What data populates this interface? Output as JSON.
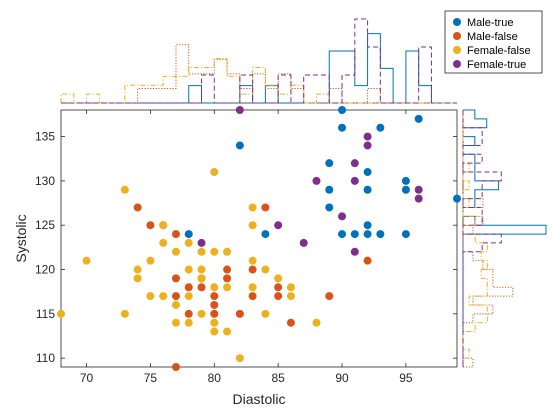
{
  "chart_data": {
    "type": "scatter",
    "title": "",
    "xlabel": "Diastolic",
    "ylabel": "Systolic",
    "xlim": [
      68,
      99
    ],
    "ylim": [
      109,
      138
    ],
    "xticks": [
      70,
      75,
      80,
      85,
      90,
      95
    ],
    "yticks": [
      110,
      115,
      120,
      125,
      130,
      135
    ],
    "grid": false,
    "legend_position": "top-right",
    "series": [
      {
        "name": "Male-true",
        "color": "#0072BD",
        "hist_style": "solid",
        "points": [
          [
            78,
            124
          ],
          [
            82,
            134
          ],
          [
            84,
            124
          ],
          [
            89,
            132
          ],
          [
            89,
            129
          ],
          [
            89,
            127
          ],
          [
            90,
            138
          ],
          [
            90,
            136
          ],
          [
            90,
            124
          ],
          [
            91,
            124
          ],
          [
            92,
            131
          ],
          [
            92,
            129
          ],
          [
            92,
            125
          ],
          [
            92,
            124
          ],
          [
            93,
            136
          ],
          [
            93,
            124
          ],
          [
            95,
            130
          ],
          [
            95,
            129
          ],
          [
            95,
            124
          ],
          [
            96,
            137
          ],
          [
            99,
            128
          ]
        ]
      },
      {
        "name": "Male-false",
        "color": "#D95319",
        "hist_style": "dotted",
        "points": [
          [
            74,
            127
          ],
          [
            75,
            125
          ],
          [
            76,
            125
          ],
          [
            77,
            124
          ],
          [
            77,
            119
          ],
          [
            77,
            117
          ],
          [
            77,
            109
          ],
          [
            78,
            118
          ],
          [
            78,
            115
          ],
          [
            79,
            119
          ],
          [
            79,
            118
          ],
          [
            80,
            117
          ],
          [
            80,
            116
          ],
          [
            80,
            115
          ],
          [
            81,
            120
          ],
          [
            81,
            119
          ],
          [
            82,
            115
          ],
          [
            83,
            120
          ],
          [
            83,
            117
          ],
          [
            84,
            127
          ],
          [
            85,
            118
          ],
          [
            85,
            117
          ],
          [
            86,
            114
          ],
          [
            89,
            117
          ],
          [
            92,
            121
          ]
        ]
      },
      {
        "name": "Female-false",
        "color": "#EDB120",
        "hist_style": "dashdot",
        "points": [
          [
            68,
            115
          ],
          [
            70,
            121
          ],
          [
            73,
            129
          ],
          [
            73,
            115
          ],
          [
            74,
            120
          ],
          [
            74,
            119
          ],
          [
            75,
            121
          ],
          [
            75,
            117
          ],
          [
            76,
            125
          ],
          [
            76,
            123
          ],
          [
            76,
            117
          ],
          [
            77,
            122
          ],
          [
            77,
            116
          ],
          [
            77,
            114
          ],
          [
            78,
            123
          ],
          [
            78,
            120
          ],
          [
            78,
            117
          ],
          [
            78,
            114
          ],
          [
            79,
            122
          ],
          [
            79,
            120
          ],
          [
            79,
            119
          ],
          [
            79,
            115
          ],
          [
            80,
            131
          ],
          [
            80,
            122
          ],
          [
            80,
            118
          ],
          [
            80,
            114
          ],
          [
            80,
            113
          ],
          [
            81,
            122
          ],
          [
            81,
            118
          ],
          [
            81,
            113
          ],
          [
            82,
            110
          ],
          [
            83,
            127
          ],
          [
            83,
            125
          ],
          [
            83,
            121
          ],
          [
            83,
            118
          ],
          [
            84,
            120
          ],
          [
            84,
            115
          ],
          [
            85,
            119
          ],
          [
            86,
            118
          ],
          [
            86,
            117
          ],
          [
            88,
            114
          ]
        ]
      },
      {
        "name": "Female-true",
        "color": "#7E2F8E",
        "hist_style": "dashed",
        "points": [
          [
            79,
            123
          ],
          [
            82,
            138
          ],
          [
            85,
            125
          ],
          [
            87,
            123
          ],
          [
            88,
            130
          ],
          [
            90,
            126
          ],
          [
            91,
            132
          ],
          [
            91,
            130
          ],
          [
            91,
            122
          ],
          [
            92,
            135
          ],
          [
            92,
            134
          ],
          [
            96,
            129
          ],
          [
            96,
            128
          ]
        ]
      }
    ]
  }
}
